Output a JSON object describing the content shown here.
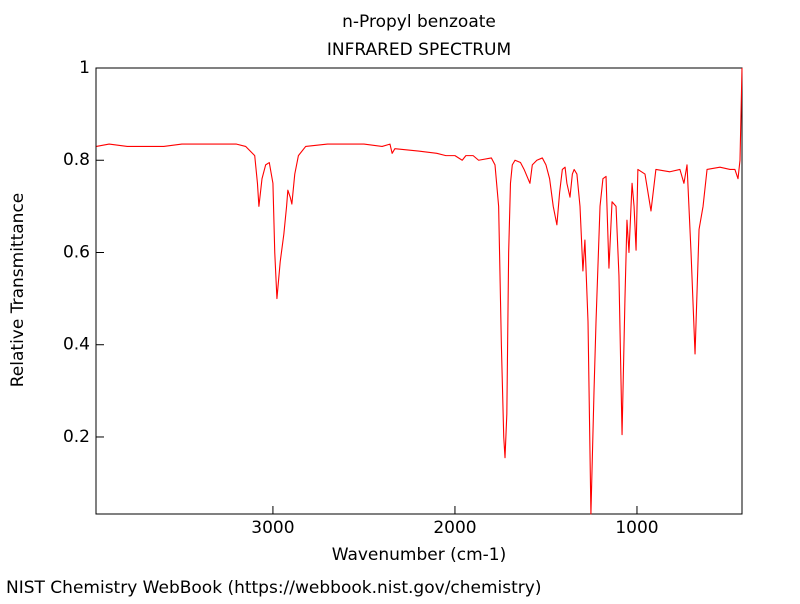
{
  "chart_data": {
    "type": "line",
    "title": "n-Propyl benzoate",
    "subtitle": "INFRARED SPECTRUM",
    "x_label": "Wavenumber (cm-1)",
    "y_label": "Relative Transmittance",
    "source": "NIST Chemistry WebBook (https://webbook.nist.gov/chemistry)",
    "color": "#ff0000",
    "xlim": [
      3972,
      423
    ],
    "ylim": [
      0.033,
      1
    ],
    "xticks": [
      3000,
      2000,
      1000
    ],
    "yticks": [
      0.2,
      0.4,
      0.6,
      0.8,
      1
    ],
    "x": [
      3970,
      3900,
      3800,
      3700,
      3600,
      3500,
      3400,
      3300,
      3200,
      3150,
      3100,
      3085,
      3077,
      3060,
      3040,
      3020,
      3000,
      2990,
      2978,
      2960,
      2940,
      2925,
      2918,
      2905,
      2896,
      2880,
      2860,
      2820,
      2700,
      2500,
      2400,
      2357,
      2345,
      2330,
      2200,
      2100,
      2050,
      2000,
      1960,
      1940,
      1900,
      1870,
      1800,
      1780,
      1760,
      1745,
      1732,
      1725,
      1715,
      1705,
      1695,
      1685,
      1670,
      1640,
      1620,
      1588,
      1575,
      1550,
      1520,
      1500,
      1480,
      1460,
      1440,
      1425,
      1410,
      1395,
      1385,
      1368,
      1355,
      1345,
      1330,
      1313,
      1297,
      1286,
      1269,
      1253,
      1236,
      1225,
      1203,
      1187,
      1170,
      1154,
      1137,
      1115,
      1099,
      1082,
      1066,
      1055,
      1044,
      1027,
      1016,
      1005,
      995,
      956,
      923,
      896,
      819,
      764,
      742,
      725,
      703,
      681,
      659,
      637,
      615,
      544,
      489,
      462,
      445,
      434,
      423
    ],
    "values": [
      0.83,
      0.835,
      0.83,
      0.83,
      0.83,
      0.835,
      0.835,
      0.835,
      0.835,
      0.83,
      0.81,
      0.75,
      0.7,
      0.76,
      0.79,
      0.795,
      0.75,
      0.6,
      0.5,
      0.58,
      0.64,
      0.7,
      0.735,
      0.72,
      0.705,
      0.77,
      0.81,
      0.83,
      0.835,
      0.835,
      0.83,
      0.835,
      0.815,
      0.825,
      0.82,
      0.815,
      0.81,
      0.81,
      0.8,
      0.81,
      0.81,
      0.8,
      0.805,
      0.79,
      0.7,
      0.4,
      0.2,
      0.155,
      0.25,
      0.6,
      0.75,
      0.79,
      0.8,
      0.795,
      0.78,
      0.75,
      0.79,
      0.8,
      0.805,
      0.79,
      0.76,
      0.7,
      0.66,
      0.73,
      0.78,
      0.785,
      0.75,
      0.72,
      0.77,
      0.78,
      0.77,
      0.7,
      0.56,
      0.627,
      0.45,
      0.033,
      0.3,
      0.45,
      0.7,
      0.76,
      0.765,
      0.566,
      0.71,
      0.7,
      0.55,
      0.205,
      0.5,
      0.67,
      0.6,
      0.75,
      0.7,
      0.605,
      0.78,
      0.77,
      0.69,
      0.78,
      0.775,
      0.78,
      0.75,
      0.79,
      0.6,
      0.38,
      0.65,
      0.7,
      0.78,
      0.785,
      0.78,
      0.78,
      0.76,
      0.8,
      1.0
    ]
  }
}
